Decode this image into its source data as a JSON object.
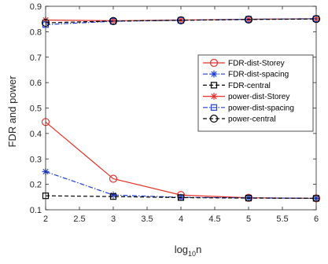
{
  "chart_data": {
    "type": "line",
    "title": "",
    "xlabel": {
      "base": "log",
      "sub": "10",
      "rest": "n"
    },
    "ylabel": "FDR and power",
    "xlim": [
      2,
      6
    ],
    "ylim": [
      0.1,
      0.9
    ],
    "xticks": [
      2,
      2.5,
      3,
      3.5,
      4,
      4.5,
      5,
      5.5,
      6
    ],
    "xtick_labels": [
      "2",
      "2.5",
      "3",
      "3.5",
      "4",
      "4.5",
      "5",
      "5.5",
      "6"
    ],
    "yticks": [
      0.1,
      0.2,
      0.3,
      0.4,
      0.5,
      0.6,
      0.7,
      0.8,
      0.9
    ],
    "ytick_labels": [
      "0.1",
      "0.2",
      "0.3",
      "0.4",
      "0.5",
      "0.6",
      "0.7",
      "0.8",
      "0.9"
    ],
    "grid": false,
    "legend_position": "right-middle",
    "x": [
      2,
      3,
      4,
      5,
      6
    ],
    "series": [
      {
        "name": "FDR-dist-Storey",
        "values": [
          0.445,
          0.222,
          0.158,
          0.147,
          0.145
        ],
        "color": "#e8312a",
        "dash": "solid",
        "marker": "circle"
      },
      {
        "name": "FDR-dist-spacing",
        "values": [
          0.25,
          0.158,
          0.149,
          0.147,
          0.145
        ],
        "color": "#1f3fd6",
        "dash": "dashdot",
        "marker": "asterisk"
      },
      {
        "name": "FDR-central",
        "values": [
          0.155,
          0.152,
          0.148,
          0.146,
          0.145
        ],
        "color": "#000000",
        "dash": "dashed",
        "marker": "square"
      },
      {
        "name": "power-dist-Storey",
        "values": [
          0.846,
          0.843,
          0.846,
          0.849,
          0.851
        ],
        "color": "#e8312a",
        "dash": "solid",
        "marker": "asterisk"
      },
      {
        "name": "power-dist-spacing",
        "values": [
          0.828,
          0.841,
          0.845,
          0.849,
          0.851
        ],
        "color": "#1f3fd6",
        "dash": "dashdot",
        "marker": "square"
      },
      {
        "name": "power-central",
        "values": [
          0.835,
          0.842,
          0.845,
          0.848,
          0.85
        ],
        "color": "#000000",
        "dash": "dashed",
        "marker": "circle"
      }
    ]
  }
}
